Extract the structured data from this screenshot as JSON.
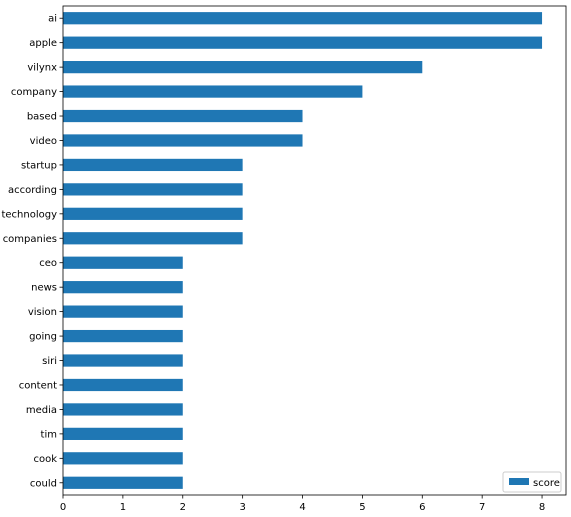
{
  "chart_data": {
    "type": "bar",
    "orientation": "horizontal",
    "categories": [
      "ai",
      "apple",
      "vilynx",
      "company",
      "based",
      "video",
      "startup",
      "according",
      "technology",
      "companies",
      "ceo",
      "news",
      "vision",
      "going",
      "siri",
      "content",
      "media",
      "tim",
      "cook",
      "could"
    ],
    "series": [
      {
        "name": "score",
        "values": [
          8,
          8,
          6,
          5,
          4,
          4,
          3,
          3,
          3,
          3,
          2,
          2,
          2,
          2,
          2,
          2,
          2,
          2,
          2,
          2
        ],
        "color": "#1f77b4"
      }
    ],
    "xlim": [
      0,
      8.4
    ],
    "xticks": [
      0,
      1,
      2,
      3,
      4,
      5,
      6,
      7,
      8
    ],
    "xlabel": "",
    "ylabel": "",
    "title": "",
    "grid": false,
    "legend_position": "lower-right"
  }
}
